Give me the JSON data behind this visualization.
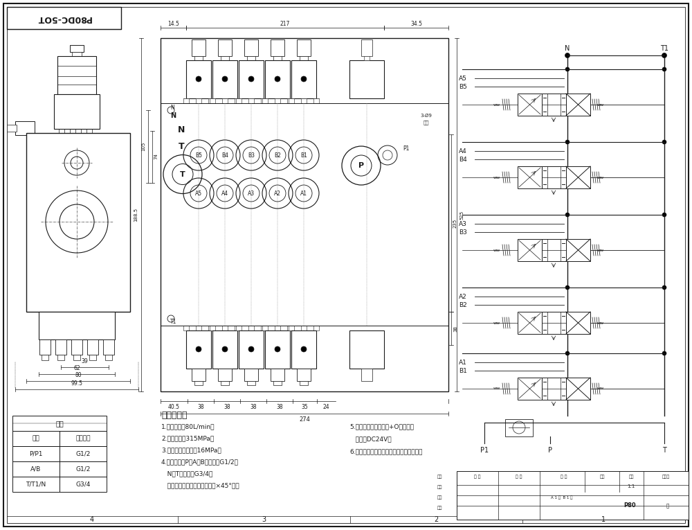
{
  "title": "P80DC-5OT",
  "bg_color": "#ffffff",
  "line_color": "#1a1a1a",
  "tech_requirements": [
    "技术要求：",
    "1.额定流量：80L/min；",
    "2.额定压力：315MPa；",
    "3.安全阀调定压力：16MPa；",
    "4.油口尺寸：P、A、B油口均为G1/2；",
    "   N、T油口均为G3/4；",
    "   油口均为平面密封，油孔口倒×45°角；"
  ],
  "tech_requirements2": [
    "5.控制方式：电磁控制+O型队杆；",
    "   电压：DC24V；",
    "6.阀体表面磷化处理，安全阀及堆塔镜销。"
  ],
  "table_header": "阀体",
  "table_col1": "接口",
  "table_col2": "蝠纹规格",
  "table_rows": [
    [
      "P/P1",
      "G1/2"
    ],
    [
      "A/B",
      "G1/2"
    ],
    [
      "T/T1/N",
      "G3/4"
    ]
  ]
}
